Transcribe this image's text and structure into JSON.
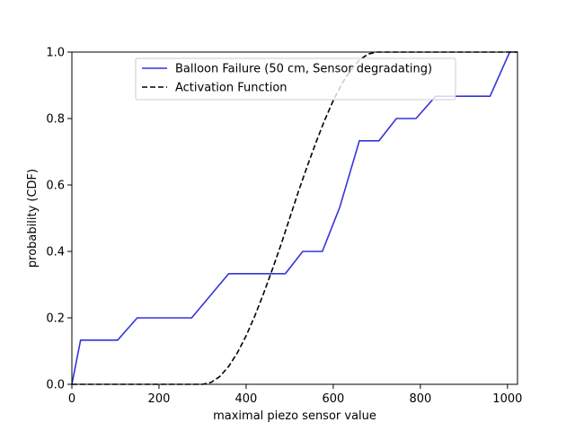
{
  "chart_data": {
    "type": "line",
    "xlabel": "maximal piezo sensor value",
    "ylabel": "probability (CDF)",
    "xlim": [
      0,
      1023
    ],
    "ylim": [
      0,
      1.0
    ],
    "xticks": [
      0,
      200,
      400,
      600,
      800,
      1000
    ],
    "yticks": [
      0.0,
      0.2,
      0.4,
      0.6,
      0.8,
      1.0
    ],
    "xtick_labels": [
      "0",
      "200",
      "400",
      "600",
      "800",
      "1000"
    ],
    "ytick_labels": [
      "0.0",
      "0.2",
      "0.4",
      "0.6",
      "0.8",
      "1.0"
    ],
    "grid": false,
    "legend_placement": "upper-center",
    "series": [
      {
        "name": "Balloon Failure (50 cm, Sensor degradating)",
        "color": "#3333dd",
        "style": "solid",
        "x": [
          0,
          20,
          105,
          150,
          275,
          360,
          490,
          530,
          575,
          615,
          660,
          705,
          745,
          790,
          835,
          880,
          960,
          1005,
          1023
        ],
        "y": [
          0.0,
          0.133,
          0.133,
          0.2,
          0.2,
          0.333,
          0.333,
          0.4,
          0.4,
          0.533,
          0.733,
          0.733,
          0.8,
          0.8,
          0.867,
          0.867,
          0.867,
          1.0,
          1.0
        ]
      },
      {
        "name": "Activation Function",
        "color": "#000000",
        "style": "dashed",
        "x": [
          0,
          100,
          200,
          300,
          320,
          340,
          360,
          380,
          400,
          420,
          440,
          460,
          480,
          500,
          520,
          540,
          560,
          580,
          600,
          620,
          640,
          660,
          680,
          700,
          720,
          800,
          900,
          1000,
          1023
        ],
        "y": [
          0.0,
          0.0,
          0.0,
          0.0,
          0.006,
          0.024,
          0.054,
          0.095,
          0.146,
          0.206,
          0.273,
          0.345,
          0.42,
          0.5,
          0.58,
          0.655,
          0.727,
          0.794,
          0.854,
          0.905,
          0.946,
          0.976,
          0.994,
          1.0,
          1.0,
          1.0,
          1.0,
          1.0,
          1.0
        ]
      }
    ]
  }
}
